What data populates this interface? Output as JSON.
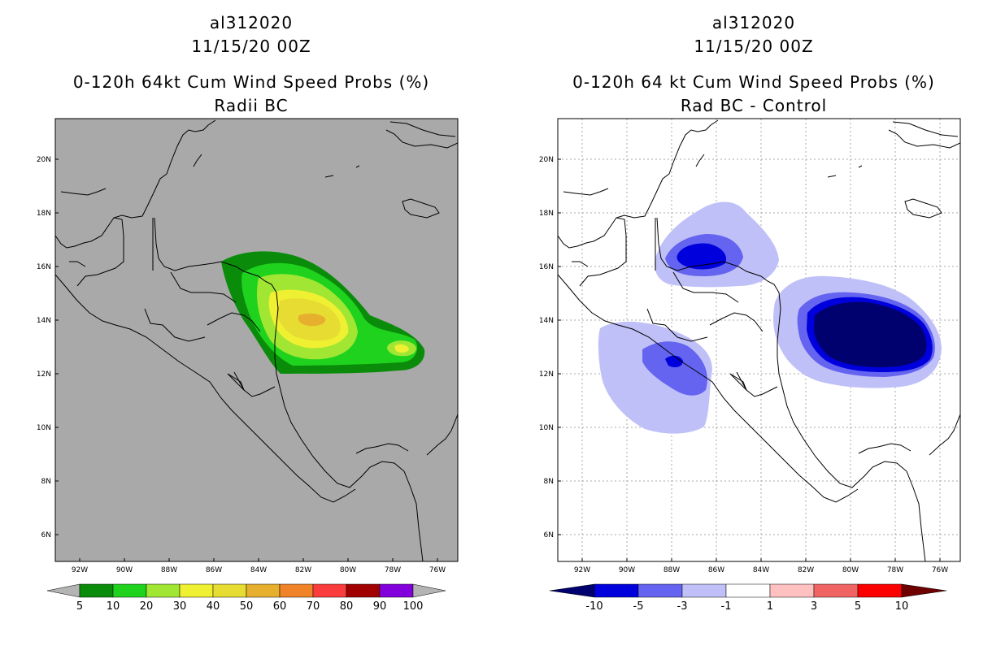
{
  "left": {
    "title_line1": "al312020",
    "title_line2": "11/15/20 00Z",
    "title_line3": "0-120h 64kt Cum Wind Speed Probs (%)",
    "title_line4": "Radii BC",
    "map_background": "#a9a9a9",
    "colorbar": {
      "labels": [
        "5",
        "10",
        "20",
        "30",
        "40",
        "50",
        "60",
        "70",
        "80",
        "90",
        "100"
      ],
      "colors": [
        "#0a8c0a",
        "#1ed21e",
        "#a0e632",
        "#f0f032",
        "#e6dc32",
        "#e6af2d",
        "#f08228",
        "#fa3c3c",
        "#a00000",
        "#8200dc"
      ],
      "end_color": "#b4b4b4"
    }
  },
  "right": {
    "title_line1": "al312020",
    "title_line2": "11/15/20 00Z",
    "title_line3": "0-120h 64 kt Cum Wind Speed Probs (%)",
    "title_line4": "Rad BC - Control",
    "map_background": "#ffffff",
    "colorbar": {
      "labels": [
        "-10",
        "-5",
        "-3",
        "-1",
        "1",
        "3",
        "5",
        "10"
      ],
      "colors": [
        "#0000dc",
        "#6464f0",
        "#c0c0f8",
        "#ffffff",
        "#ffc0c0",
        "#f06464",
        "#fa0000"
      ],
      "end_left": "#00006e",
      "end_right": "#6e0000"
    }
  },
  "axes": {
    "lat_labels": [
      "20N",
      "18N",
      "16N",
      "14N",
      "12N",
      "10N",
      "8N",
      "6N"
    ],
    "lon_labels": [
      "92W",
      "90W",
      "88W",
      "86W",
      "84W",
      "82W",
      "80W",
      "78W",
      "76W"
    ]
  }
}
